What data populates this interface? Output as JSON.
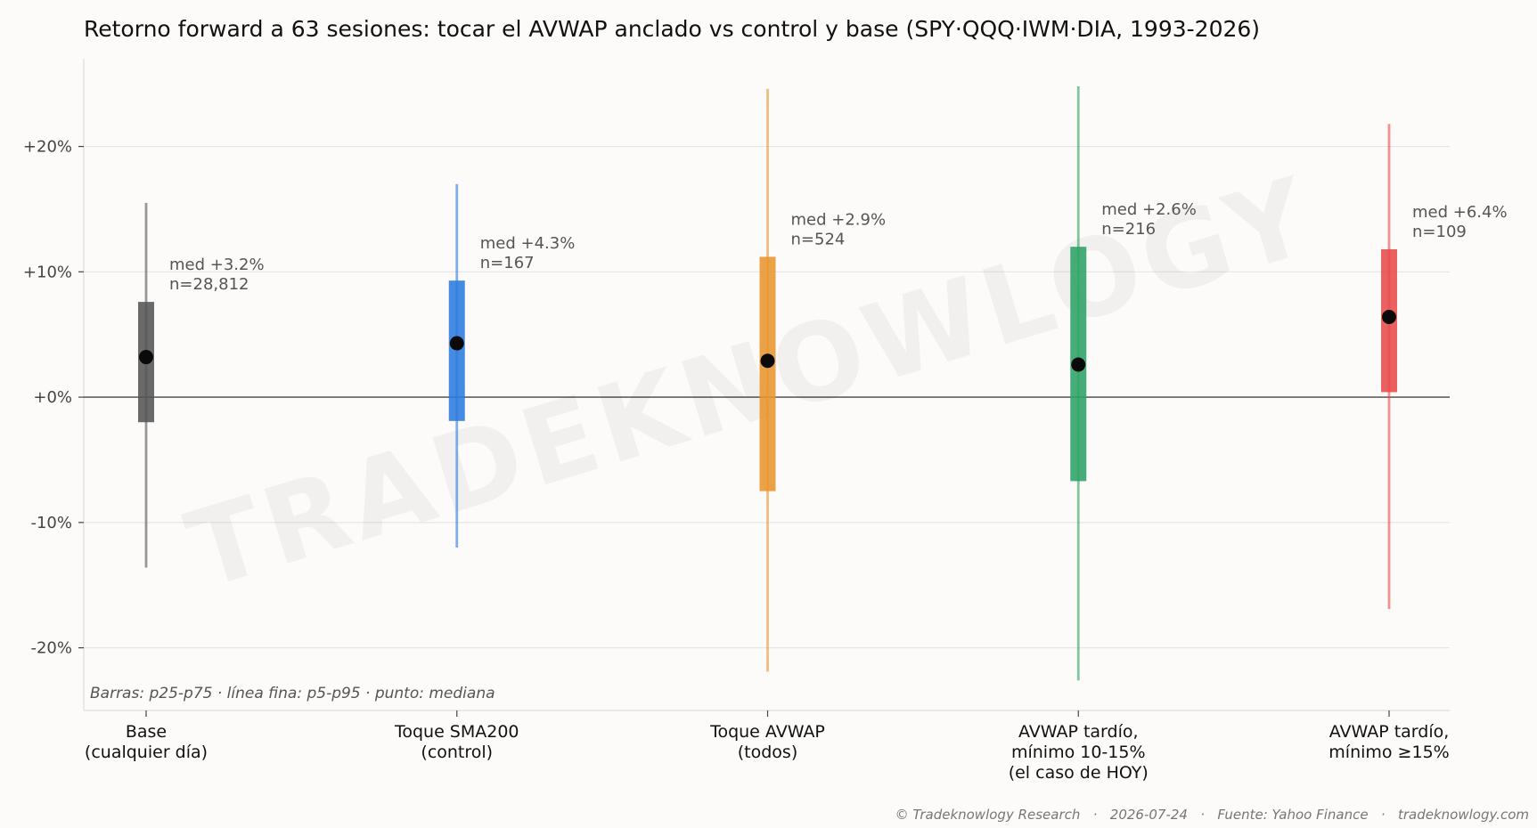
{
  "chart_data": {
    "type": "range",
    "title": "Retorno forward a 63 sesiones: tocar el AVWAP anclado vs control y base (SPY·QQQ·IWM·DIA, 1993-2026)",
    "xlabel": "",
    "ylabel": "",
    "ylim": [
      -25,
      27
    ],
    "yticks": [
      -20,
      -10,
      0,
      10,
      20
    ],
    "ytick_labels": [
      "-20%",
      "-10%",
      "+0%",
      "+10%",
      "+20%"
    ],
    "grid": true,
    "zero_line": true,
    "categories": [
      {
        "lines": [
          "Base",
          "(cualquier día)"
        ],
        "color": "#555555",
        "p5": -13.6,
        "p25": -2.0,
        "median": 3.2,
        "p75": 7.6,
        "p95": 15.5,
        "annotation": [
          "med +3.2%",
          "n=28,812"
        ]
      },
      {
        "lines": [
          "Toque SMA200",
          "(control)"
        ],
        "color": "#2b7bde",
        "p5": -12.0,
        "p25": -1.9,
        "median": 4.3,
        "p75": 9.3,
        "p95": 17.0,
        "annotation": [
          "med +4.3%",
          "n=167"
        ]
      },
      {
        "lines": [
          "Toque AVWAP",
          "(todos)"
        ],
        "color": "#e8952e",
        "p5": -21.9,
        "p25": -7.5,
        "median": 2.9,
        "p75": 11.2,
        "p95": 24.6,
        "annotation": [
          "med +2.9%",
          "n=524"
        ]
      },
      {
        "lines": [
          "AVWAP tardío,",
          "mínimo 10-15%",
          "(el caso de HOY)"
        ],
        "color": "#2ea265",
        "p5": -22.6,
        "p25": -6.7,
        "median": 2.6,
        "p75": 12.0,
        "p95": 24.8,
        "annotation": [
          "med +2.6%",
          "n=216"
        ]
      },
      {
        "lines": [
          "AVWAP tardío,",
          "mínimo ≥15%"
        ],
        "color": "#e84a4a",
        "p5": -16.9,
        "p25": 0.4,
        "median": 6.4,
        "p75": 11.8,
        "p95": 21.8,
        "annotation": [
          "med +6.4%",
          "n=109"
        ]
      }
    ],
    "legend_note": "Barras: p25-p75 · línea fina: p5-p95 · punto: mediana"
  },
  "watermark": "TRADEKNOWLOGY",
  "footer": "© Tradeknowlogy Research   ·   2026-07-24   ·   Fuente: Yahoo Finance   ·   tradeknowlogy.com"
}
